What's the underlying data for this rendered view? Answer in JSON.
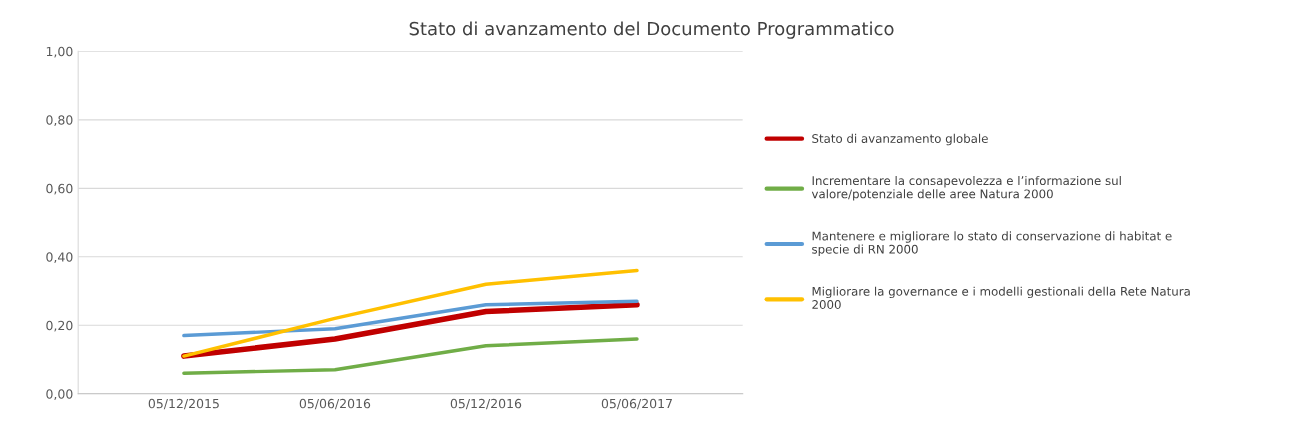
{
  "chart_data": {
    "type": "line",
    "title": "Stato di avanzamento del Documento Programmatico",
    "categories": [
      "05/12/2015",
      "05/06/2016",
      "05/12/2016",
      "05/06/2017"
    ],
    "series": [
      {
        "name": "Stato di avanzamento globale",
        "color": "#c00000",
        "values": [
          0.11,
          0.16,
          0.24,
          0.26
        ]
      },
      {
        "name": "Incrementare la consapevolezza e l’informazione sul\nvalore/potenziale delle aree Natura 2000",
        "color": "#70ad47",
        "values": [
          0.06,
          0.07,
          0.14,
          0.16
        ]
      },
      {
        "name": "Mantenere e migliorare lo stato di conservazione di habitat e\nspecie di RN 2000",
        "color": "#5b9bd5",
        "values": [
          0.17,
          0.19,
          0.26,
          0.27
        ]
      },
      {
        "name": "Migliorare la governance e i modelli gestionali della Rete Natura\n2000",
        "color": "#ffc000",
        "values": [
          0.11,
          0.22,
          0.32,
          0.36
        ]
      }
    ],
    "ylim": [
      0,
      1
    ],
    "yticks": [
      {
        "value": 0,
        "label": "0,00"
      },
      {
        "value": 0.2,
        "label": "0,20"
      },
      {
        "value": 0.4,
        "label": "0,40"
      },
      {
        "value": 0.6,
        "label": "0,60"
      },
      {
        "value": 0.8,
        "label": "0,80"
      },
      {
        "value": 1,
        "label": "1,00"
      }
    ],
    "grid": "y",
    "legend": "right",
    "marker": "none",
    "line_style": "solid"
  }
}
